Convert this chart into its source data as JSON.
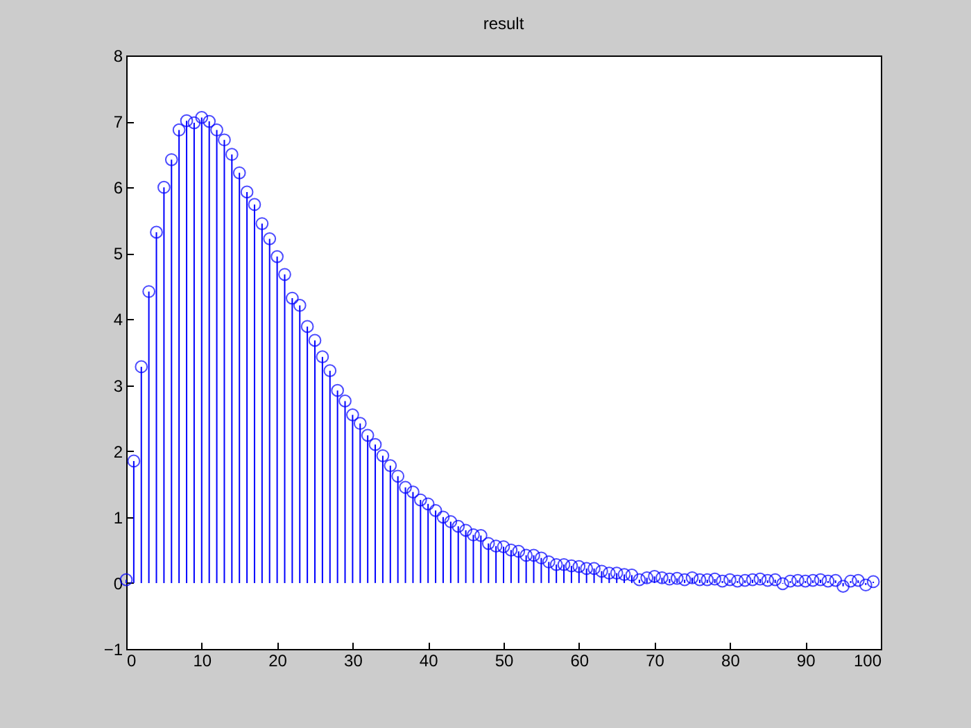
{
  "chart_data": {
    "type": "lollipop",
    "title": "result",
    "marker": "circle",
    "grid": false,
    "x": [
      0,
      1,
      2,
      3,
      4,
      5,
      6,
      7,
      8,
      9,
      10,
      11,
      12,
      13,
      14,
      15,
      16,
      17,
      18,
      19,
      20,
      21,
      22,
      23,
      24,
      25,
      26,
      27,
      28,
      29,
      30,
      31,
      32,
      33,
      34,
      35,
      36,
      37,
      38,
      39,
      40,
      41,
      42,
      43,
      44,
      45,
      46,
      47,
      48,
      49,
      50,
      51,
      52,
      53,
      54,
      55,
      56,
      57,
      58,
      59,
      60,
      61,
      62,
      63,
      64,
      65,
      66,
      67,
      68,
      69,
      70,
      71,
      72,
      73,
      74,
      75,
      76,
      77,
      78,
      79,
      80,
      81,
      82,
      83,
      84,
      85,
      86,
      87,
      88,
      89,
      90,
      91,
      92,
      93,
      94,
      95,
      96,
      97,
      98,
      99
    ],
    "series": [
      {
        "color": "#0000ff",
        "values": [
          0.05,
          1.85,
          3.28,
          4.42,
          5.32,
          6.0,
          6.42,
          6.87,
          7.01,
          6.98,
          7.06,
          7.0,
          6.87,
          6.72,
          6.5,
          6.22,
          5.93,
          5.74,
          5.45,
          5.22,
          4.95,
          4.68,
          4.32,
          4.21,
          3.89,
          3.68,
          3.43,
          3.22,
          2.92,
          2.76,
          2.55,
          2.42,
          2.24,
          2.1,
          1.93,
          1.78,
          1.62,
          1.45,
          1.38,
          1.26,
          1.2,
          1.1,
          1.0,
          0.93,
          0.86,
          0.8,
          0.73,
          0.72,
          0.6,
          0.56,
          0.55,
          0.5,
          0.48,
          0.42,
          0.42,
          0.38,
          0.32,
          0.28,
          0.28,
          0.26,
          0.25,
          0.22,
          0.22,
          0.18,
          0.15,
          0.15,
          0.13,
          0.12,
          0.05,
          0.08,
          0.1,
          0.08,
          0.06,
          0.07,
          0.05,
          0.08,
          0.05,
          0.05,
          0.06,
          0.03,
          0.05,
          0.03,
          0.04,
          0.05,
          0.06,
          0.04,
          0.05,
          -0.01,
          0.03,
          0.04,
          0.03,
          0.04,
          0.05,
          0.03,
          0.04,
          -0.05,
          0.03,
          0.04,
          -0.03,
          0.02
        ]
      }
    ],
    "xlim": [
      0,
      100
    ],
    "xticks": [
      0,
      10,
      20,
      30,
      40,
      50,
      60,
      70,
      80,
      90,
      100
    ],
    "ylim": [
      -1,
      8
    ],
    "yticks": [
      -1,
      0,
      1,
      2,
      3,
      4,
      5,
      6,
      7,
      8
    ]
  }
}
